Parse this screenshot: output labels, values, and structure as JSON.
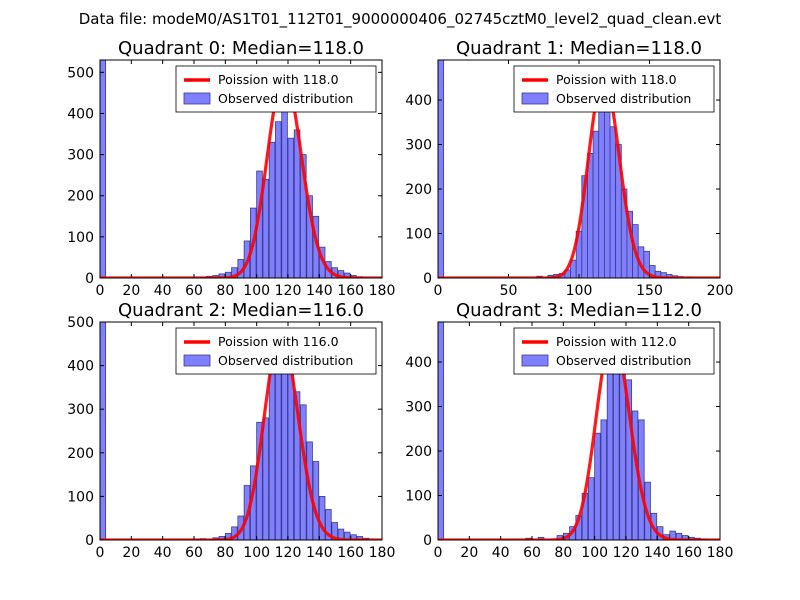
{
  "figure": {
    "title": "Data file: modeM0/AS1T01_112T01_9000000406_02745cztM0_level2_quad_clean.evt"
  },
  "colors": {
    "bar_fill": "#8080ff",
    "bar_edge": "#3a3a8a",
    "curve": "#ff0000",
    "axes": "#000000"
  },
  "legend": {
    "observed_label": "Observed distribution"
  },
  "chart_data": [
    {
      "type": "bar",
      "title": "Quadrant 0: Median=118.0",
      "poisson_label": "Poission with 118.0",
      "poisson_mean": 118.0,
      "poisson_peak": 490,
      "xlim": [
        0,
        180
      ],
      "ylim": [
        0,
        530
      ],
      "xticks": [
        0,
        20,
        40,
        60,
        80,
        100,
        120,
        140,
        160,
        180
      ],
      "yticks": [
        0,
        100,
        200,
        300,
        400,
        500
      ],
      "bin_width": 3.6,
      "bins_x": [
        0,
        64,
        68,
        72,
        76,
        80,
        84,
        88,
        92,
        96,
        100,
        104,
        108,
        112,
        116,
        120,
        124,
        128,
        132,
        136,
        140,
        144,
        148,
        152,
        156,
        160,
        164
      ],
      "bins_y": [
        530,
        2,
        4,
        6,
        10,
        14,
        25,
        45,
        90,
        170,
        260,
        240,
        330,
        380,
        460,
        340,
        360,
        300,
        200,
        150,
        75,
        40,
        25,
        18,
        12,
        6,
        3
      ]
    },
    {
      "type": "bar",
      "title": "Quadrant 1: Median=118.0",
      "poisson_label": "Poission with 118.0",
      "poisson_mean": 118.0,
      "poisson_peak": 450,
      "xlim": [
        0,
        200
      ],
      "ylim": [
        0,
        490
      ],
      "xticks": [
        0,
        50,
        100,
        150,
        200
      ],
      "yticks": [
        0,
        100,
        200,
        300,
        400
      ],
      "bin_width": 4.0,
      "bins_x": [
        0,
        70,
        78,
        82,
        86,
        90,
        94,
        98,
        102,
        106,
        110,
        114,
        118,
        122,
        126,
        130,
        134,
        138,
        142,
        146,
        150,
        154,
        158,
        162,
        166,
        170,
        176
      ],
      "bins_y": [
        490,
        4,
        6,
        8,
        10,
        18,
        40,
        105,
        230,
        280,
        330,
        420,
        400,
        340,
        300,
        200,
        150,
        120,
        70,
        60,
        28,
        15,
        12,
        8,
        5,
        3,
        2
      ]
    },
    {
      "type": "bar",
      "title": "Quadrant 2: Median=116.0",
      "poisson_label": "Poission with 116.0",
      "poisson_mean": 116.0,
      "poisson_peak": 470,
      "xlim": [
        0,
        180
      ],
      "ylim": [
        0,
        500
      ],
      "xticks": [
        0,
        20,
        40,
        60,
        80,
        100,
        120,
        140,
        160,
        180
      ],
      "yticks": [
        0,
        100,
        200,
        300,
        400,
        500
      ],
      "bin_width": 3.6,
      "bins_x": [
        0,
        64,
        72,
        76,
        80,
        84,
        88,
        92,
        96,
        100,
        104,
        108,
        112,
        116,
        120,
        124,
        128,
        132,
        136,
        140,
        144,
        148,
        152,
        156,
        160,
        164,
        168
      ],
      "bins_y": [
        500,
        3,
        5,
        8,
        15,
        30,
        55,
        125,
        170,
        270,
        280,
        400,
        440,
        420,
        390,
        340,
        310,
        225,
        180,
        100,
        70,
        40,
        25,
        18,
        12,
        8,
        4
      ]
    },
    {
      "type": "bar",
      "title": "Quadrant 3: Median=112.0",
      "poisson_label": "Poission with 112.0",
      "poisson_mean": 112.0,
      "poisson_peak": 460,
      "xlim": [
        0,
        180
      ],
      "ylim": [
        0,
        490
      ],
      "xticks": [
        0,
        20,
        40,
        60,
        80,
        100,
        120,
        140,
        160,
        180
      ],
      "yticks": [
        0,
        100,
        200,
        300,
        400
      ],
      "bin_width": 3.6,
      "bins_x": [
        0,
        56,
        64,
        76,
        80,
        84,
        88,
        92,
        96,
        100,
        104,
        108,
        112,
        116,
        120,
        124,
        128,
        132,
        136,
        140,
        144,
        148,
        152,
        156,
        160,
        164,
        168
      ],
      "bins_y": [
        490,
        4,
        6,
        10,
        15,
        30,
        55,
        105,
        140,
        240,
        270,
        420,
        445,
        440,
        360,
        290,
        270,
        130,
        60,
        30,
        12,
        20,
        15,
        10,
        6,
        4,
        2
      ]
    }
  ]
}
